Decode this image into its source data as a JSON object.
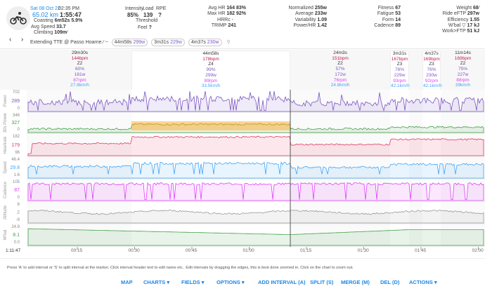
{
  "header": {
    "date": "Sat 08 Oct 22",
    "time": "02:35 PM",
    "distance": "65.02 km",
    "duration": "1:55:47",
    "coasting_label": "Coasting",
    "coasting": "6m52s",
    "coasting_pct": "5.9%",
    "avg_speed_label": "Avg Speed",
    "avg_speed": "33.7",
    "climbing_label": "Climbing",
    "climbing": "109m",
    "intensity_label": "Intensity",
    "intensity": "85%",
    "load_label": "Load",
    "load": "139",
    "rpe_label": "RPE",
    "rpe": "?",
    "threshold_label": "Threshold",
    "feel_label": "Feel",
    "feel": "?",
    "avg_hr_label": "Avg HR",
    "avg_hr": "164",
    "avg_hr_pct": "83%",
    "max_hr_label": "Max HR",
    "max_hr": "182",
    "max_hr_pct": "92%",
    "hrrc_label": "HRRc",
    "hrrc": "-",
    "trimp_label": "TRIMP",
    "trimp": "241",
    "normalized_label": "Normalized",
    "normalized": "255w",
    "average_label": "Average",
    "average": "233w",
    "variability_label": "Variability",
    "variability": "1.09",
    "power_hr_label": "Power/HR",
    "power_hr": "1.42",
    "fitness_label": "Fitness",
    "fitness": "67",
    "fatigue_label": "Fatigue",
    "fatigue": "53",
    "form_label": "Form",
    "form": "14",
    "cadence_label": "Cadence",
    "cadence": "89",
    "weight_label": "Weight",
    "weight": "68",
    "eftp_label": "Ride eFTP",
    "eftp": "297w",
    "efficiency_label": "Efficiency",
    "efficiency": "1.55",
    "wbal_label": "W'bal ▽",
    "wbal": "17 kJ",
    "work_ftp_label": "Work>FTP",
    "work_ftp": "51 kJ",
    "segment_name": "Extending TTE @ Passo Hoarne",
    "efforts": [
      {
        "time": "44m58s",
        "power": "299w"
      },
      {
        "time": "3m31s",
        "power": "229w"
      },
      {
        "time": "4m37s",
        "power": "230w"
      }
    ]
  },
  "intervals": [
    {
      "duration": "29m30s",
      "hr": "144bpm",
      "zone": "Z2",
      "pct": "60%",
      "power": "181w",
      "cadence": "87rpm",
      "speed": "27.8km/h"
    },
    {
      "duration": "44m58s",
      "hr": "178bpm",
      "zone": "Z4",
      "pct": "99%",
      "power": "299w",
      "cadence": "89rpm",
      "speed": "33.5km/h"
    },
    {
      "duration": "24m3s",
      "hr": "151bpm",
      "zone": "Z2",
      "pct": "57%",
      "power": "172w",
      "cadence": "76rpm",
      "speed": "24.8km/h"
    },
    {
      "duration": "3m31s",
      "hr": "167bpm",
      "zone": "Z3",
      "pct": "76%",
      "power": "229w",
      "cadence": "93rpm",
      "speed": "42.1km/h"
    },
    {
      "duration": "4m37s",
      "hr": "169bpm",
      "zone": "Z3",
      "pct": "76%",
      "power": "230w",
      "cadence": "92rpm",
      "speed": "42.1km/h"
    },
    {
      "duration": "11m14s",
      "hr": "169bpm",
      "zone": "Z2",
      "pct": "75%",
      "power": "227w",
      "cadence": "88rpm",
      "speed": "39km/h"
    }
  ],
  "panels": [
    {
      "name": "Power",
      "max": "702",
      "cur": "289",
      "min": "0",
      "color": "#7e57c2"
    },
    {
      "name": "30s Power",
      "max": "346",
      "cur": "327",
      "min": "0",
      "color": "#43a047"
    },
    {
      "name": "Heartrate",
      "max": "182",
      "cur": "179",
      "min": "96",
      "color": "#e53963"
    },
    {
      "name": "Speed",
      "max": "46.4",
      "cur": "29.8",
      "min": "1.6",
      "color": "#42a5f5"
    },
    {
      "name": "Cadence",
      "max": "105",
      "cur": "87",
      "min": "0",
      "color": "#e040fb"
    },
    {
      "name": "Altitude",
      "max": "8",
      "cur": "2",
      "min": "-9",
      "color": "#999999"
    },
    {
      "name": "W'bal",
      "max": "24.9",
      "cur": "8.1",
      "min": "0.0",
      "color": "#43a047"
    }
  ],
  "x_axis": {
    "cursor": "1:11:47",
    "ticks": [
      "00:15",
      "00:30",
      "00:45",
      "01:00",
      "01:15",
      "01:30",
      "01:45",
      "02:00"
    ]
  },
  "help_text": "Press 'A' to add interval or 'S' to split interval at the marker. Click interval header text to edit name etc.. Edit intervals by dragging the edges, this is best done zoomed in. Click on the chart to zoom out.",
  "toolbar": {
    "map": "MAP",
    "charts": "CHARTS ▾",
    "fields": "FIELDS ▾",
    "options": "OPTIONS ▾",
    "add_interval": "ADD INTERVAL (A)",
    "split": "SPLIT (S)",
    "merge": "MERGE (M)",
    "del": "DEL (D)",
    "actions": "ACTIONS ▾"
  }
}
